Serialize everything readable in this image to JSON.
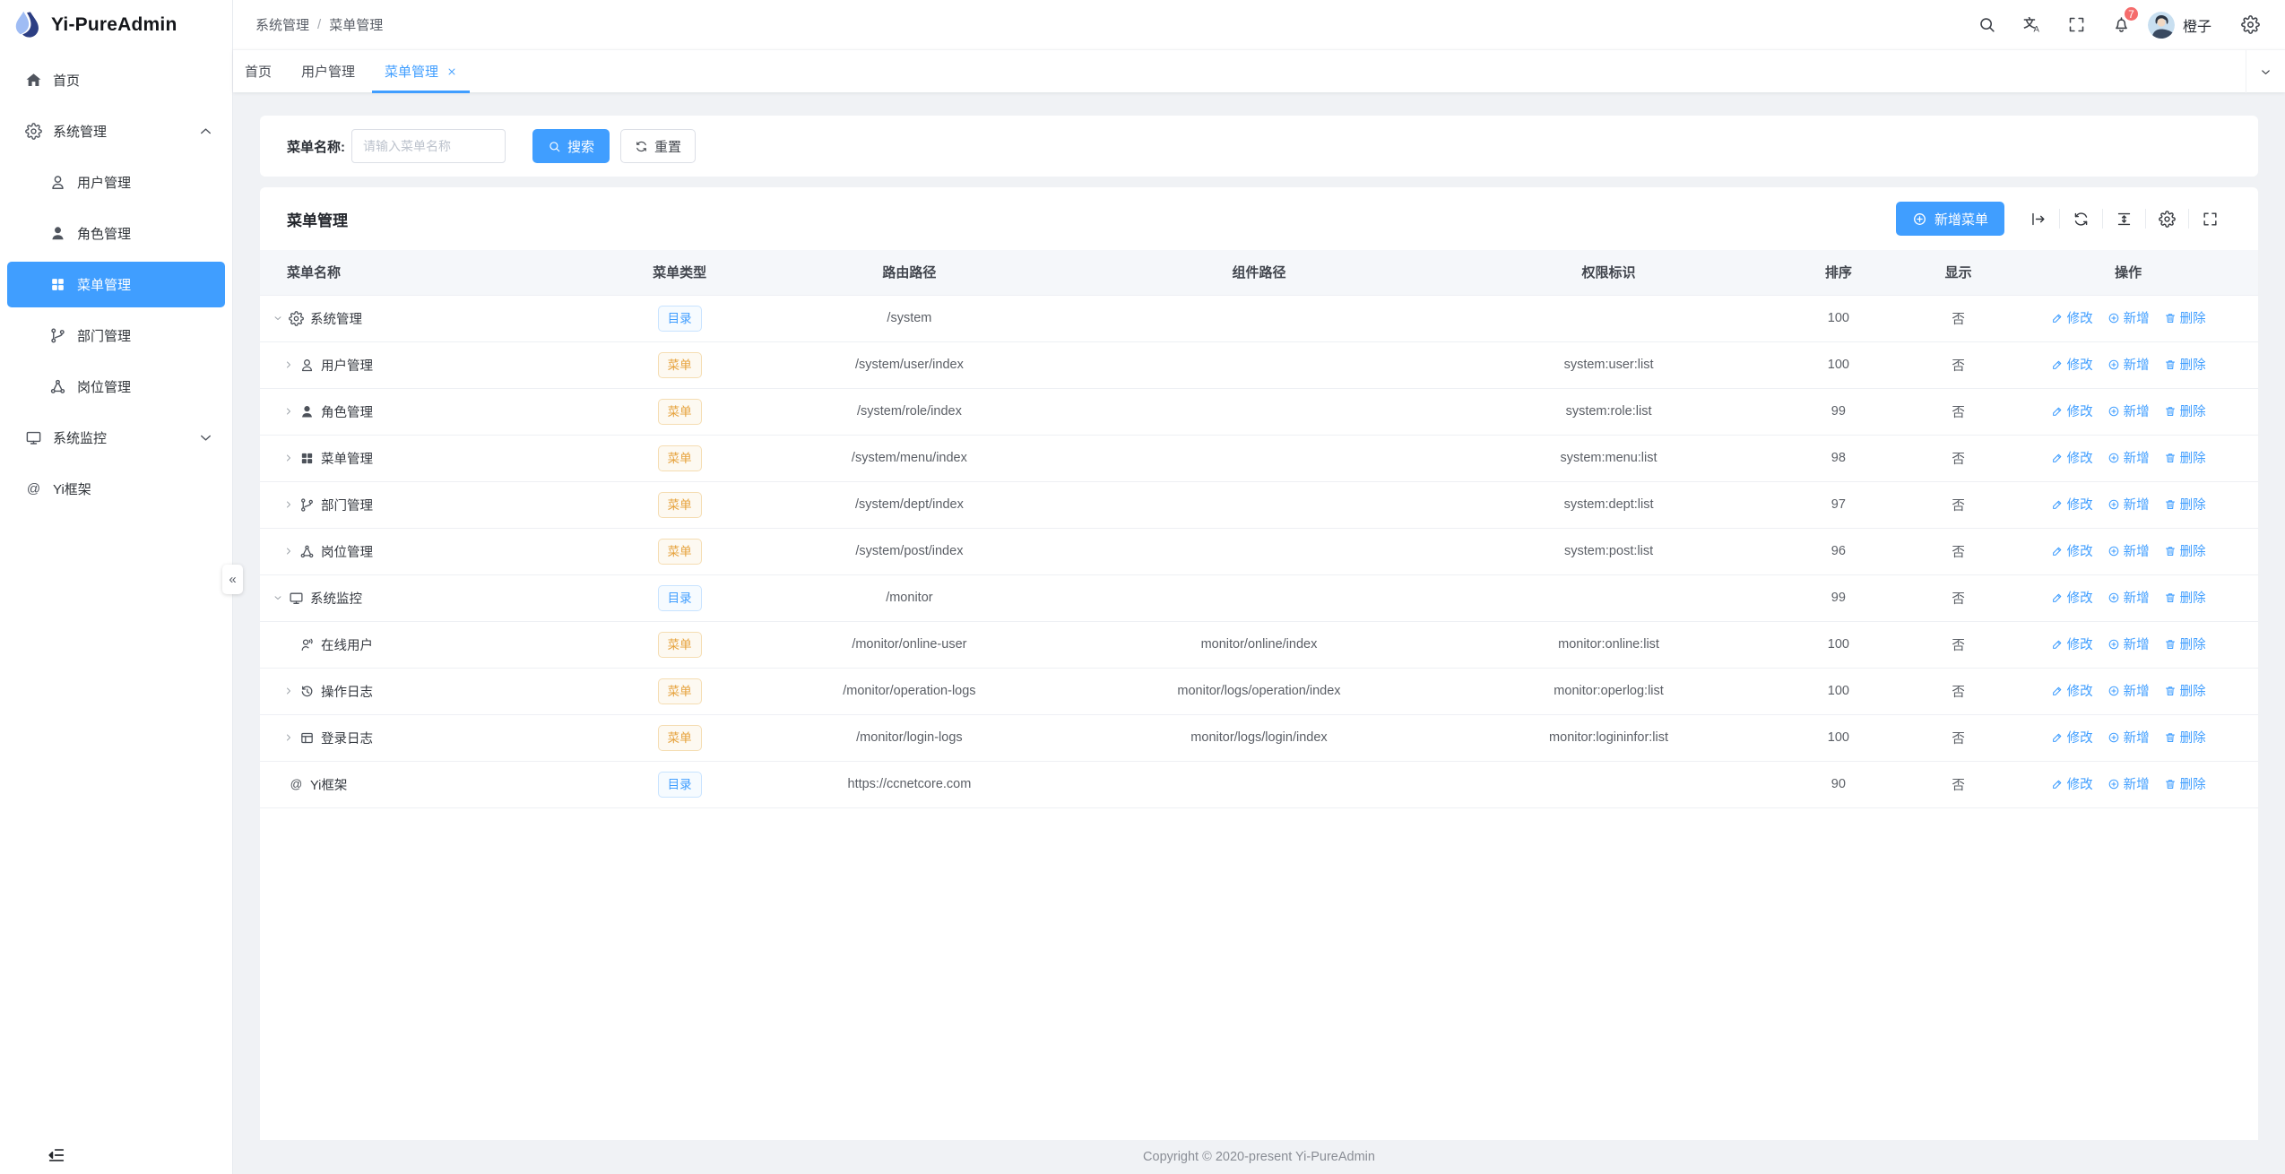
{
  "app": {
    "name": "Yi-PureAdmin",
    "logo_icon": "drop-icon"
  },
  "colors": {
    "primary": "#409eff",
    "warning": "#e6a23c",
    "badge": "#f56c6c",
    "sidebar_active_bg": "#409eff"
  },
  "sidebar": {
    "items": [
      {
        "label": "首页",
        "icon": "home-icon",
        "level": 0
      },
      {
        "label": "系统管理",
        "icon": "gear-icon",
        "level": 0,
        "chevron": "up"
      },
      {
        "label": "用户管理",
        "icon": "user-icon",
        "level": 1
      },
      {
        "label": "角色管理",
        "icon": "user-filled-icon",
        "level": 1
      },
      {
        "label": "菜单管理",
        "icon": "grid-icon",
        "level": 1,
        "active": true
      },
      {
        "label": "部门管理",
        "icon": "branch-icon",
        "level": 1
      },
      {
        "label": "岗位管理",
        "icon": "nodes-icon",
        "level": 1
      },
      {
        "label": "系统监控",
        "icon": "monitor-icon",
        "level": 0,
        "chevron": "down"
      },
      {
        "label": "Yi框架",
        "icon": "at-icon",
        "level": 0
      }
    ],
    "collapse_glyph": "«"
  },
  "header": {
    "breadcrumb": [
      "系统管理",
      "菜单管理"
    ],
    "breadcrumb_separator": "/",
    "badge_count": "7",
    "user": {
      "name": "橙子"
    }
  },
  "tabs": {
    "items": [
      {
        "label": "首页"
      },
      {
        "label": "用户管理"
      },
      {
        "label": "菜单管理",
        "active": true,
        "closable": true
      }
    ]
  },
  "search_form": {
    "label": "菜单名称:",
    "placeholder": "请输入菜单名称",
    "search_label": "搜索",
    "reset_label": "重置"
  },
  "table_card": {
    "title": "菜单管理",
    "add_button_label": "新增菜单",
    "columns": [
      "菜单名称",
      "菜单类型",
      "路由路径",
      "组件路径",
      "权限标识",
      "排序",
      "显示",
      "操作"
    ],
    "tag_types": {
      "dir": "目录",
      "menu": "菜单"
    },
    "actions": {
      "edit": "修改",
      "add": "新增",
      "delete": "删除"
    },
    "rows": [
      {
        "level": 0,
        "chevron": "down",
        "icon": "gear-icon",
        "name": "系统管理",
        "type": "dir",
        "route": "/system",
        "component": "",
        "permission": "",
        "sort": "100",
        "show": "否"
      },
      {
        "level": 1,
        "chevron": "right",
        "icon": "user-icon",
        "name": "用户管理",
        "type": "menu",
        "route": "/system/user/index",
        "component": "",
        "permission": "system:user:list",
        "sort": "100",
        "show": "否"
      },
      {
        "level": 1,
        "chevron": "right",
        "icon": "user-filled-icon",
        "name": "角色管理",
        "type": "menu",
        "route": "/system/role/index",
        "component": "",
        "permission": "system:role:list",
        "sort": "99",
        "show": "否"
      },
      {
        "level": 1,
        "chevron": "right",
        "icon": "grid-icon",
        "name": "菜单管理",
        "type": "menu",
        "route": "/system/menu/index",
        "component": "",
        "permission": "system:menu:list",
        "sort": "98",
        "show": "否"
      },
      {
        "level": 1,
        "chevron": "right",
        "icon": "branch-icon",
        "name": "部门管理",
        "type": "menu",
        "route": "/system/dept/index",
        "component": "",
        "permission": "system:dept:list",
        "sort": "97",
        "show": "否"
      },
      {
        "level": 1,
        "chevron": "right",
        "icon": "nodes-icon",
        "name": "岗位管理",
        "type": "menu",
        "route": "/system/post/index",
        "component": "",
        "permission": "system:post:list",
        "sort": "96",
        "show": "否"
      },
      {
        "level": 0,
        "chevron": "down",
        "icon": "monitor-icon",
        "name": "系统监控",
        "type": "dir",
        "route": "/monitor",
        "component": "",
        "permission": "",
        "sort": "99",
        "show": "否"
      },
      {
        "level": 1,
        "chevron": "none",
        "icon": "online-user-icon",
        "name": "在线用户",
        "type": "menu",
        "route": "/monitor/online-user",
        "component": "monitor/online/index",
        "permission": "monitor:online:list",
        "sort": "100",
        "show": "否"
      },
      {
        "level": 1,
        "chevron": "right",
        "icon": "history-icon",
        "name": "操作日志",
        "type": "menu",
        "route": "/monitor/operation-logs",
        "component": "monitor/logs/operation/index",
        "permission": "monitor:operlog:list",
        "sort": "100",
        "show": "否"
      },
      {
        "level": 1,
        "chevron": "right",
        "icon": "window-icon",
        "name": "登录日志",
        "type": "menu",
        "route": "/monitor/login-logs",
        "component": "monitor/logs/login/index",
        "permission": "monitor:logininfor:list",
        "sort": "100",
        "show": "否"
      },
      {
        "level": 0,
        "chevron": "none",
        "icon": "at-icon",
        "name": "Yi框架",
        "type": "dir",
        "route": "https://ccnetcore.com",
        "component": "",
        "permission": "",
        "sort": "90",
        "show": "否"
      }
    ]
  },
  "footer": {
    "copyright": "Copyright © 2020-present Yi-PureAdmin"
  }
}
